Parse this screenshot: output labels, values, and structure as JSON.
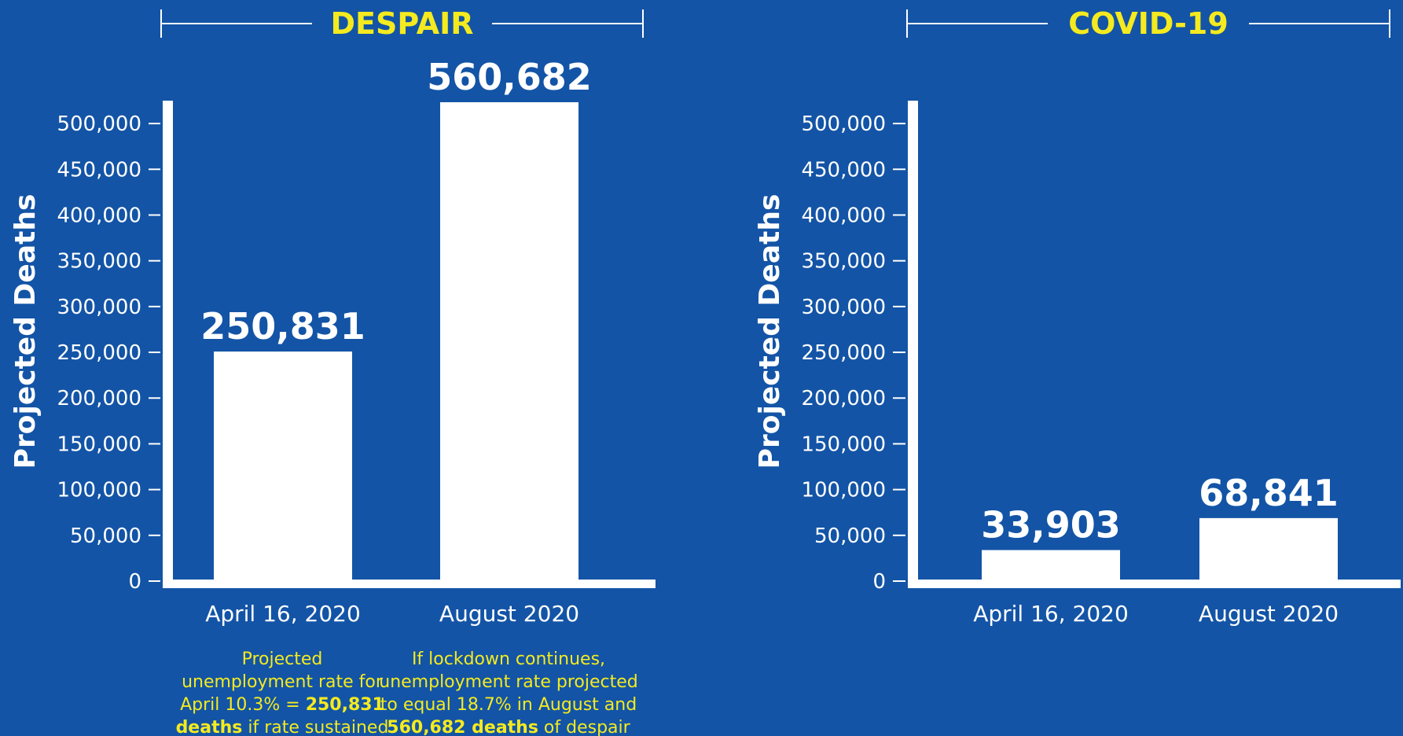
{
  "colors": {
    "background": "#1354a6",
    "bar": "#ffffff",
    "title": "#f4ea1f",
    "caption": "#f4ea1f",
    "axis": "#ffffff"
  },
  "chart_data": [
    {
      "type": "bar",
      "title": "DESPAIR",
      "ylabel": "Projected  Deaths",
      "xlabel": "",
      "ylim": [
        0,
        525000
      ],
      "yticks": [
        0,
        50000,
        100000,
        150000,
        200000,
        250000,
        300000,
        350000,
        400000,
        450000,
        500000
      ],
      "ytick_labels": [
        "0",
        "50,000",
        "100,000",
        "150,000",
        "200,000",
        "250,000",
        "300,000",
        "350,000",
        "400,000",
        "450,000",
        "500,000"
      ],
      "categories": [
        "April 16, 2020",
        "August 2020"
      ],
      "values": [
        250831,
        560682
      ],
      "value_labels": [
        "250,831",
        "560,682"
      ],
      "grid": false,
      "captions": [
        [
          [
            {
              "t": "Projected",
              "b": false
            }
          ],
          [
            {
              "t": "unemployment rate for",
              "b": false
            }
          ],
          [
            {
              "t": "April 10.3% = ",
              "b": false
            },
            {
              "t": "250,831",
              "b": true
            }
          ],
          [
            {
              "t": "deaths",
              "b": true
            },
            {
              "t": " if rate sustained",
              "b": false
            }
          ]
        ],
        [
          [
            {
              "t": "If lockdown continues,",
              "b": false
            }
          ],
          [
            {
              "t": "unemployment rate projected",
              "b": false
            }
          ],
          [
            {
              "t": "to equal 18.7% in August and",
              "b": false
            }
          ],
          [
            {
              "t": "560,682 deaths",
              "b": true
            },
            {
              "t": " of despair",
              "b": false
            }
          ]
        ]
      ]
    },
    {
      "type": "bar",
      "title": "COVID-19",
      "ylabel": "Projected  Deaths",
      "xlabel": "",
      "ylim": [
        0,
        525000
      ],
      "yticks": [
        0,
        50000,
        100000,
        150000,
        200000,
        250000,
        300000,
        350000,
        400000,
        450000,
        500000
      ],
      "ytick_labels": [
        "0",
        "50,000",
        "100,000",
        "150,000",
        "200,000",
        "250,000",
        "300,000",
        "350,000",
        "400,000",
        "450,000",
        "500,000"
      ],
      "categories": [
        "April 16, 2020",
        "August 2020"
      ],
      "values": [
        33903,
        68841
      ],
      "value_labels": [
        "33,903",
        "68,841"
      ],
      "grid": false,
      "captions": []
    }
  ]
}
